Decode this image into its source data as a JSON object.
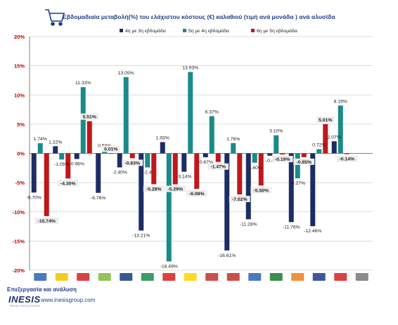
{
  "colors": {
    "series1": "#1c2d66",
    "series2": "#1a8a8a",
    "series3": "#c0171b",
    "grid": "#d0d0d0",
    "axis": "#808080",
    "title": "#1f3f8a",
    "tick": "#c00000"
  },
  "icons": {
    "title_icon": "shopping-cart-icon"
  },
  "chart_data": {
    "type": "bar",
    "title": "Εβδομαδιαία μεταβολή(%) του ελάχιστου κόστους (€) καλαθιού (τιμή ανά μονάδα ) ανά αλυσίδα",
    "xlabel": "",
    "ylabel": "",
    "ylim": [
      -20,
      20
    ],
    "yticks": [
      "-20%",
      "-15%",
      "-10%",
      "-5%",
      "0%",
      "5%",
      "10%",
      "15%",
      "20%"
    ],
    "y_step": 5,
    "grid": true,
    "legend_position": "top-right",
    "categories": [
      "ΑΒ",
      "Lidl",
      "Market In",
      "My market",
      "Sklavenitis",
      "Masoutis",
      "Galaxias",
      "Kritikos",
      "Bazaar",
      "Metro",
      "Efresh",
      "Marinopoulos",
      "Kipos",
      "Rilakis",
      "Chalkiadakis",
      "Vasilopoulos"
    ],
    "category_labels_visible": [
      "",
      "",
      "",
      "",
      "",
      "",
      "",
      "",
      "",
      "",
      "",
      "",
      "",
      "",
      "",
      ""
    ],
    "series": [
      {
        "name": "4η με 3η εβδομάδα",
        "values": [
          -6.7,
          1.22,
          -0.96,
          -6.76,
          -2.4,
          -13.21,
          1.93,
          -3.14,
          -0.67,
          -16.61,
          -11.28,
          -0.4,
          -11.76,
          -12.46,
          2.07,
          0
        ]
      },
      {
        "name": "5η με 4η εβδομάδα",
        "values": [
          1.74,
          -1.05,
          11.33,
          0.58,
          13.05,
          -2.4,
          -18.49,
          13.93,
          6.37,
          1.76,
          -1.6,
          3.1,
          -4.27,
          0.72,
          8.19,
          0
        ]
      },
      {
        "name": "6η με 5η εβδομάδα",
        "values": [
          -10.74,
          -4.3,
          5.51,
          0.01,
          -0.83,
          -5.28,
          -5.29,
          -6.08,
          -1.47,
          -7.02,
          -5.5,
          -0.19,
          -0.65,
          5.01,
          -0.14,
          0
        ]
      }
    ],
    "data_labels": [
      [
        "-6.70%",
        "1.74%",
        "-10.74%"
      ],
      [
        "1.22%",
        "-1.05%",
        "-4.30%"
      ],
      [
        "-0.96%",
        "11.33%",
        "5.51%"
      ],
      [
        "-6.76%",
        "0.58%",
        "0.01%"
      ],
      [
        "-2.40%",
        "13.05%",
        "-0.83%"
      ],
      [
        "-13.21%",
        "-2.4",
        "-5.28%"
      ],
      [
        "1.93%",
        "-18.49%",
        "-5.29%"
      ],
      [
        "-3.14%",
        "13.93%",
        "-6.08%"
      ],
      [
        "-0.67%",
        "6.37%",
        "-1.47%"
      ],
      [
        "-16.61%",
        "1.76%",
        "-7.02%"
      ],
      [
        "-11.28%",
        "-1.60%",
        "-5.50%"
      ],
      [
        "-0.4",
        "3.10%",
        "-0.19%"
      ],
      [
        "-11.76%",
        "-4.27%",
        "-0.65%"
      ],
      [
        "-12.46%",
        "0.72%",
        "5.01%"
      ],
      [
        "2.07%",
        "8.19%",
        "-0.14%"
      ],
      [
        "",
        "",
        ""
      ]
    ]
  },
  "footer": {
    "credit": "Επεξεργασία και ανάλυση",
    "brand": "INESIS",
    "brand_sub": "RETAIL INTELLIGENCE",
    "site": "www.inesisgroup.com"
  }
}
